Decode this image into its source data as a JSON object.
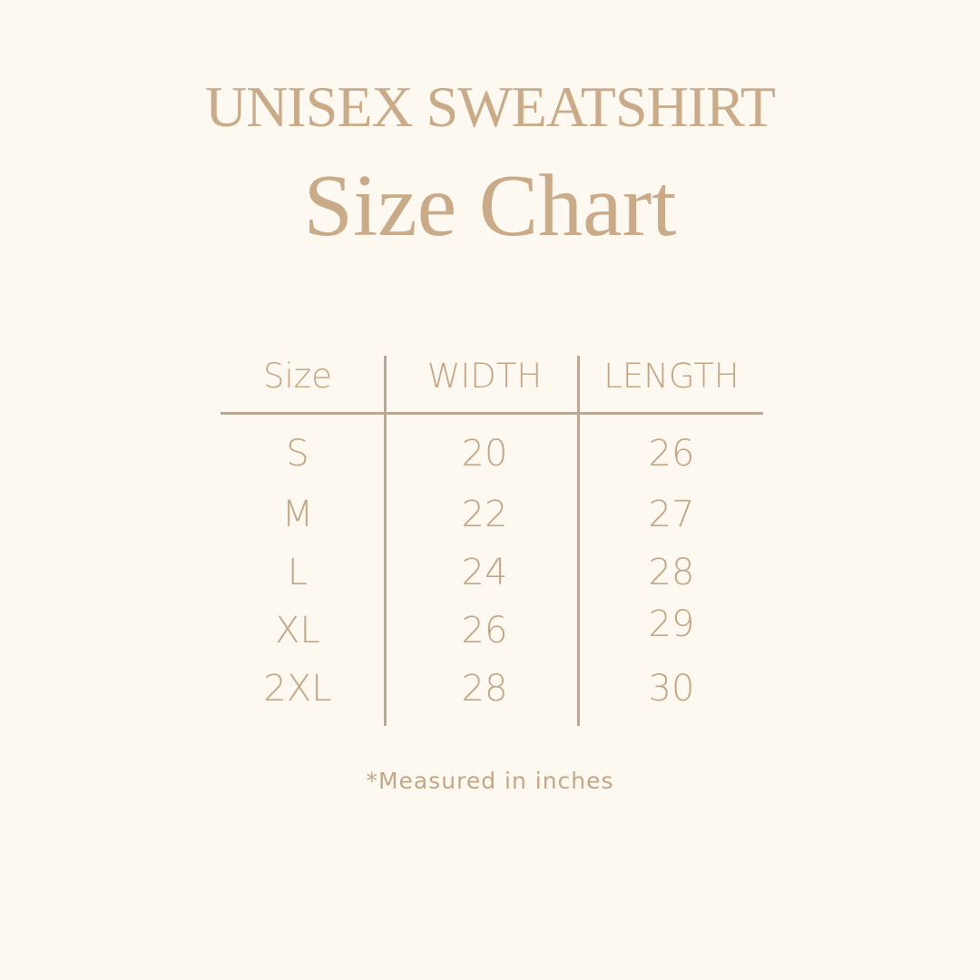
{
  "title": {
    "line1": "UNISEX SWEATSHIRT",
    "line2": "Size Chart"
  },
  "table": {
    "headers": [
      "Size",
      "WIDTH",
      "LENGTH"
    ],
    "rows": [
      [
        "S",
        "20",
        "26"
      ],
      [
        "M",
        "22",
        "27"
      ],
      [
        "L",
        "24",
        "28"
      ],
      [
        "XL",
        "26",
        "29"
      ],
      [
        "2XL",
        "28",
        "30"
      ]
    ]
  },
  "footnote": "*Measured in inches",
  "colors": {
    "background": "#fdf8f0",
    "text": "#c6a887",
    "lines": "#bba894"
  }
}
